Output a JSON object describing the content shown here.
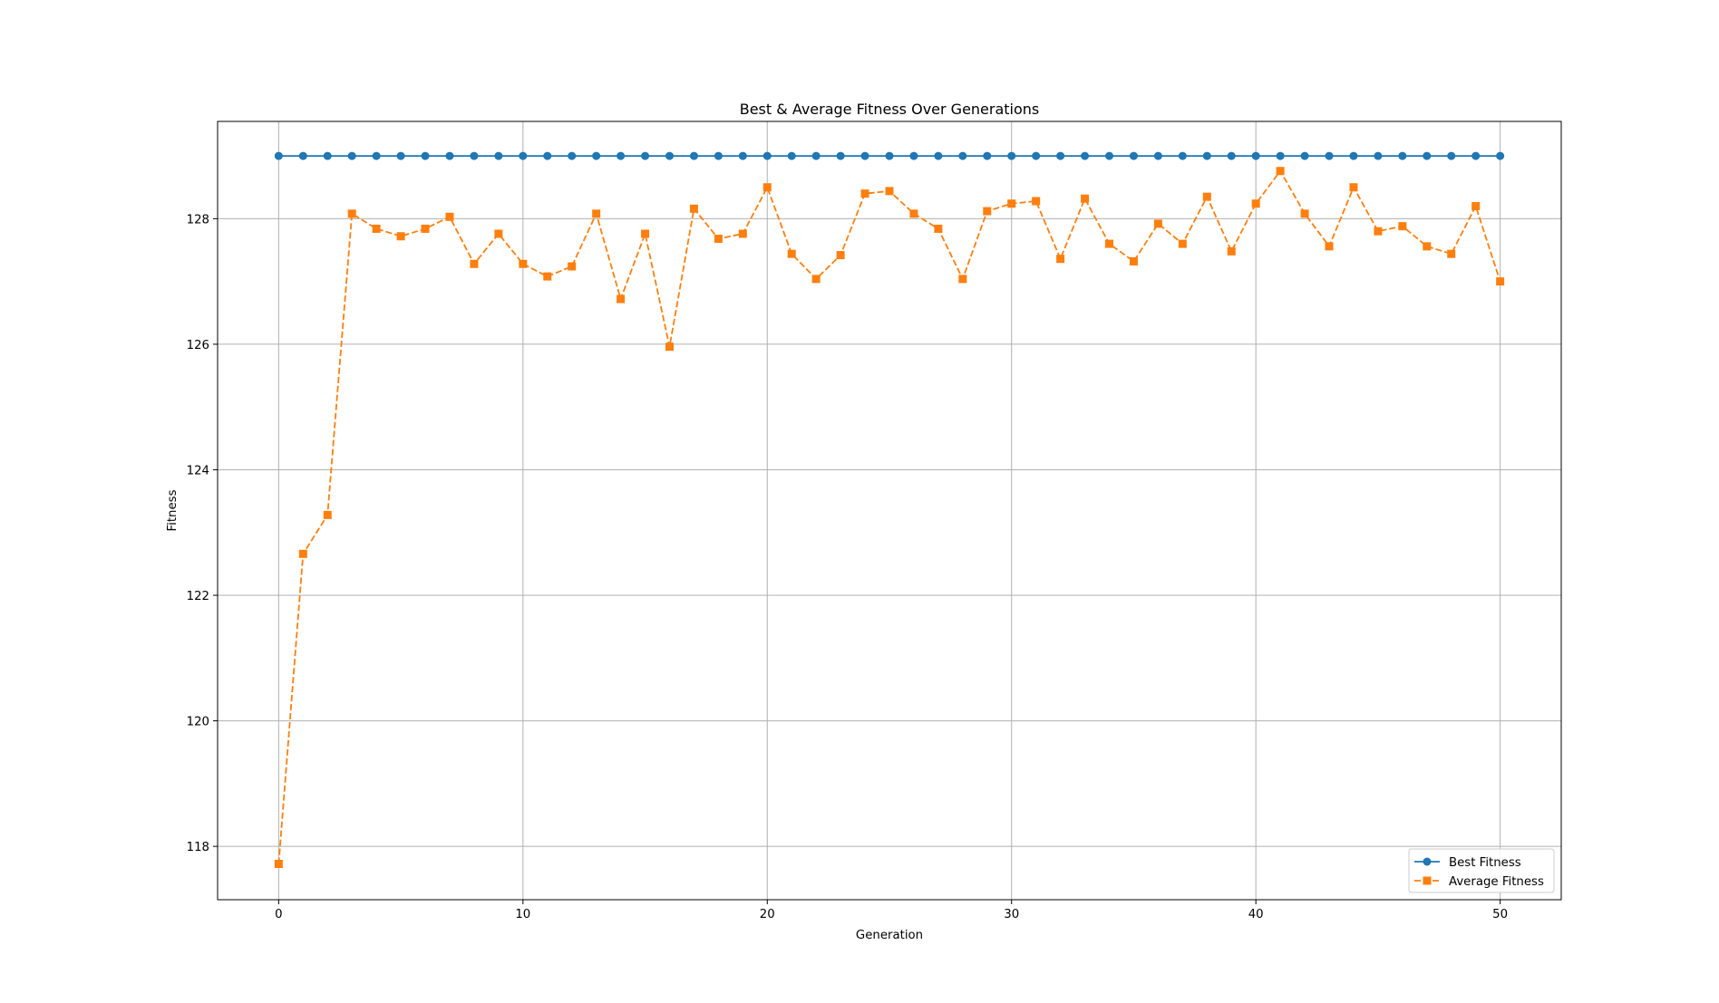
{
  "chart_data": {
    "type": "line",
    "title": "Best & Average Fitness Over Generations",
    "xlabel": "Generation",
    "ylabel": "Fitness",
    "xlim": [
      -2.5,
      52.5
    ],
    "ylim": [
      117.15,
      129.55
    ],
    "xticks": [
      0,
      10,
      20,
      30,
      40,
      50
    ],
    "yticks": [
      118,
      120,
      122,
      124,
      126,
      128
    ],
    "grid": true,
    "legend_position": "lower-right",
    "x": [
      0,
      1,
      2,
      3,
      4,
      5,
      6,
      7,
      8,
      9,
      10,
      11,
      12,
      13,
      14,
      15,
      16,
      17,
      18,
      19,
      20,
      21,
      22,
      23,
      24,
      25,
      26,
      27,
      28,
      29,
      30,
      31,
      32,
      33,
      34,
      35,
      36,
      37,
      38,
      39,
      40,
      41,
      42,
      43,
      44,
      45,
      46,
      47,
      48,
      49,
      50
    ],
    "series": [
      {
        "name": "Best Fitness",
        "color": "#1f77b4",
        "marker": "circle",
        "linestyle": "solid",
        "values": [
          129,
          129,
          129,
          129,
          129,
          129,
          129,
          129,
          129,
          129,
          129,
          129,
          129,
          129,
          129,
          129,
          129,
          129,
          129,
          129,
          129,
          129,
          129,
          129,
          129,
          129,
          129,
          129,
          129,
          129,
          129,
          129,
          129,
          129,
          129,
          129,
          129,
          129,
          129,
          129,
          129,
          129,
          129,
          129,
          129,
          129,
          129,
          129,
          129,
          129,
          129
        ]
      },
      {
        "name": "Average Fitness",
        "color": "#ff7f0e",
        "marker": "square",
        "linestyle": "dashed",
        "values": [
          117.72,
          122.66,
          123.28,
          128.08,
          127.84,
          127.72,
          127.84,
          128.03,
          127.28,
          127.76,
          127.28,
          127.08,
          127.24,
          128.08,
          126.72,
          127.76,
          125.96,
          128.16,
          127.68,
          127.76,
          128.5,
          127.44,
          127.04,
          127.42,
          128.4,
          128.44,
          128.08,
          127.84,
          127.04,
          128.12,
          128.24,
          128.28,
          127.36,
          128.32,
          127.6,
          127.32,
          127.92,
          127.6,
          128.35,
          127.48,
          128.24,
          128.76,
          128.08,
          127.56,
          128.5,
          127.8,
          127.88,
          127.56,
          127.44,
          128.2,
          127.0
        ]
      }
    ]
  }
}
